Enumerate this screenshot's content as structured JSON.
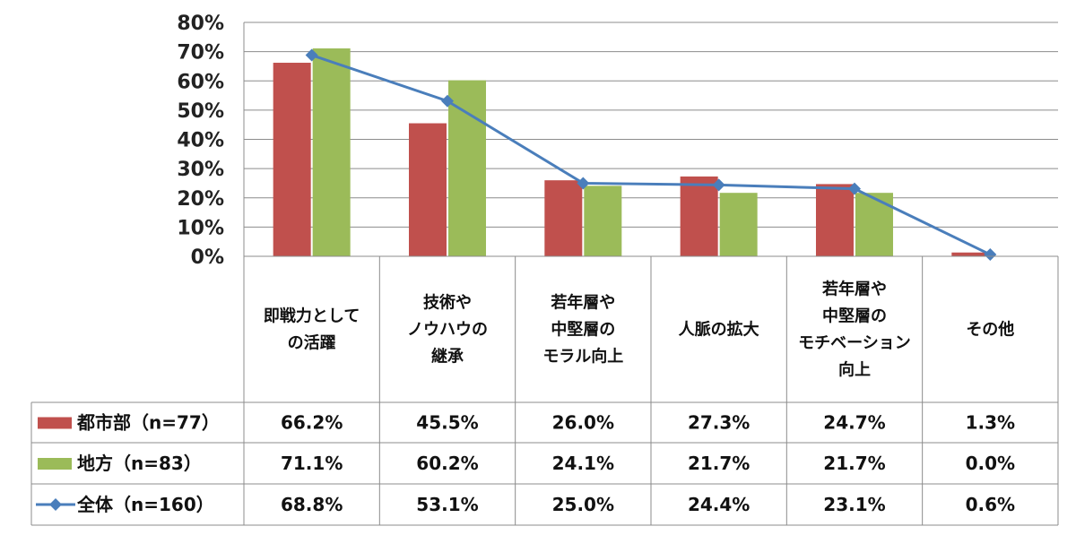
{
  "chart_data": {
    "type": "bar",
    "categories": [
      [
        "即戦力として",
        "の活躍"
      ],
      [
        "技術や",
        "ノウハウの",
        "継承"
      ],
      [
        "若年層や",
        "中堅層の",
        "モラル向上"
      ],
      [
        "人脈の拡大"
      ],
      [
        "若年層や",
        "中堅層の",
        "モチベーション",
        "向上"
      ],
      [
        "その他"
      ]
    ],
    "ylim": [
      0,
      80
    ],
    "yticks": [
      "0%",
      "10%",
      "20%",
      "30%",
      "40%",
      "50%",
      "60%",
      "70%",
      "80%"
    ],
    "grid": true,
    "legend": "table-left",
    "series": [
      {
        "name": "都市部（n=77）",
        "kind": "bar",
        "color": "#c0504d",
        "values": [
          66.2,
          45.5,
          26.0,
          27.3,
          24.7,
          1.3
        ],
        "labels": [
          "66.2%",
          "45.5%",
          "26.0%",
          "27.3%",
          "24.7%",
          "1.3%"
        ]
      },
      {
        "name": "地方（n=83）",
        "kind": "bar",
        "color": "#9bbb59",
        "values": [
          71.1,
          60.2,
          24.1,
          21.7,
          21.7,
          0.0
        ],
        "labels": [
          "71.1%",
          "60.2%",
          "24.1%",
          "21.7%",
          "21.7%",
          "0.0%"
        ]
      },
      {
        "name": "全体（n=160）",
        "kind": "line",
        "color": "#4a7ebb",
        "values": [
          68.8,
          53.1,
          25.0,
          24.4,
          23.1,
          0.6
        ],
        "labels": [
          "68.8%",
          "53.1%",
          "25.0%",
          "24.4%",
          "23.1%",
          "0.6%"
        ]
      }
    ]
  }
}
